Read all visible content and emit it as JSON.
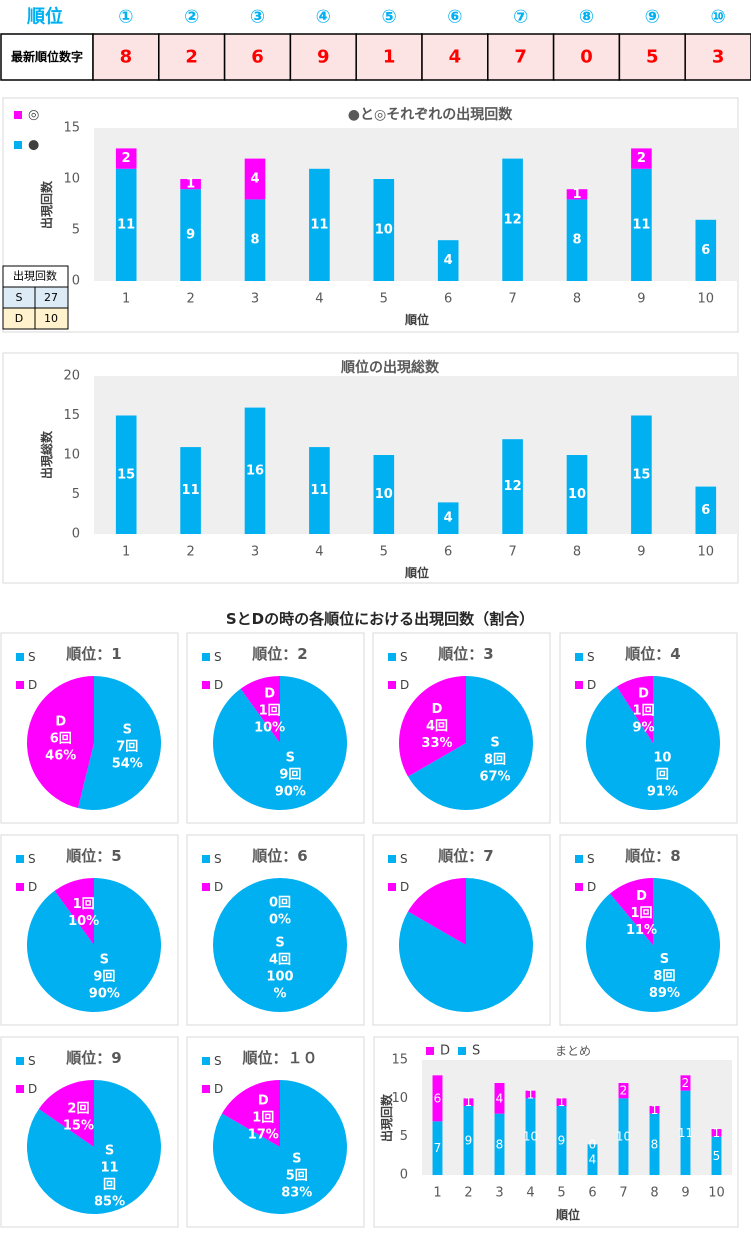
{
  "header_table": {
    "label": "順位",
    "columns": [
      "①",
      "②",
      "③",
      "④",
      "⑤",
      "⑥",
      "⑦",
      "⑧",
      "⑨",
      "⑩"
    ],
    "row_label": "最新順位数字",
    "row_values": [
      8,
      2,
      6,
      9,
      1,
      4,
      7,
      0,
      5,
      3
    ]
  },
  "side_table": {
    "header": "出現回数",
    "rows": [
      [
        "S",
        27
      ],
      [
        "D",
        10
      ]
    ]
  },
  "section_title": "SとDの時の各順位における出現回数（割合）",
  "chart_data": [
    {
      "type": "bar",
      "stacked": true,
      "title": "●と◎それぞれの出現回数",
      "x_label": "順位",
      "y_label": "出現回数",
      "categories": [
        "1",
        "2",
        "3",
        "4",
        "5",
        "6",
        "7",
        "8",
        "9",
        "10"
      ],
      "series": [
        {
          "name": "●",
          "color": "#00b0f0",
          "values": [
            11,
            9,
            8,
            11,
            10,
            4,
            12,
            8,
            11,
            6
          ]
        },
        {
          "name": "◎",
          "color": "#ff00ff",
          "values": [
            2,
            1,
            4,
            null,
            null,
            null,
            null,
            1,
            2,
            null
          ]
        }
      ],
      "ylim": [
        0,
        15
      ],
      "yticks": [
        0,
        5,
        10,
        15
      ],
      "grid": false,
      "legend": "top-left"
    },
    {
      "type": "bar",
      "title": "順位の出現総数",
      "x_label": "順位",
      "y_label": "出現総数",
      "categories": [
        "1",
        "2",
        "3",
        "4",
        "5",
        "6",
        "7",
        "8",
        "9",
        "10"
      ],
      "values": [
        15,
        11,
        16,
        11,
        10,
        4,
        12,
        10,
        15,
        6
      ],
      "color": "#00b0f0",
      "ylim": [
        0,
        20
      ],
      "yticks": [
        0,
        5,
        10,
        15,
        20
      ],
      "grid": false
    },
    {
      "type": "pie",
      "title": "順位：1",
      "categories": [
        "S",
        "D"
      ],
      "colors": [
        "#00b0f0",
        "#ff00ff"
      ],
      "values": [
        7,
        6
      ],
      "value_labels": [
        [
          "S",
          "7回",
          "54%"
        ],
        [
          "D",
          "6回",
          "46%"
        ]
      ]
    },
    {
      "type": "pie",
      "title": "順位：2",
      "categories": [
        "S",
        "D"
      ],
      "colors": [
        "#00b0f0",
        "#ff00ff"
      ],
      "values": [
        9,
        1
      ],
      "value_labels": [
        [
          "S",
          "9回",
          "90%"
        ],
        [
          "D",
          "1回",
          "10%"
        ]
      ]
    },
    {
      "type": "pie",
      "title": "順位：3",
      "categories": [
        "S",
        "D"
      ],
      "colors": [
        "#00b0f0",
        "#ff00ff"
      ],
      "values": [
        8,
        4
      ],
      "value_labels": [
        [
          "S",
          "8回",
          "67%"
        ],
        [
          "D",
          "4回",
          "33%"
        ]
      ]
    },
    {
      "type": "pie",
      "title": "順位：4",
      "categories": [
        "S",
        "D"
      ],
      "colors": [
        "#00b0f0",
        "#ff00ff"
      ],
      "values": [
        10,
        1
      ],
      "value_labels": [
        [
          "10",
          "回",
          "91%"
        ],
        [
          "D",
          "1回",
          "9%"
        ]
      ]
    },
    {
      "type": "pie",
      "title": "順位：5",
      "categories": [
        "S",
        "D"
      ],
      "colors": [
        "#00b0f0",
        "#ff00ff"
      ],
      "values": [
        9,
        1
      ],
      "value_labels": [
        [
          "S",
          "9回",
          "90%"
        ],
        [
          "1回",
          "10%"
        ]
      ]
    },
    {
      "type": "pie",
      "title": "順位：6",
      "categories": [
        "S",
        "D"
      ],
      "colors": [
        "#00b0f0",
        "#ff00ff"
      ],
      "values": [
        4,
        0
      ],
      "value_labels": [
        [
          "S",
          "4回",
          "100",
          "%"
        ],
        [
          "0回",
          "0%"
        ]
      ]
    },
    {
      "type": "pie",
      "title": "順位：7",
      "categories": [
        "S",
        "D"
      ],
      "colors": [
        "#00b0f0",
        "#ff00ff"
      ],
      "values": [
        10,
        2
      ]
    },
    {
      "type": "pie",
      "title": "順位：8",
      "categories": [
        "S",
        "D"
      ],
      "colors": [
        "#00b0f0",
        "#ff00ff"
      ],
      "values": [
        8,
        1
      ],
      "value_labels": [
        [
          "S",
          "8回",
          "89%"
        ],
        [
          "D",
          "1回",
          "11%"
        ]
      ]
    },
    {
      "type": "pie",
      "title": "順位：9",
      "categories": [
        "S",
        "D"
      ],
      "colors": [
        "#00b0f0",
        "#ff00ff"
      ],
      "values": [
        11,
        2
      ],
      "value_labels": [
        [
          "S",
          "11",
          "回",
          "85%"
        ],
        [
          "2回",
          "15%"
        ]
      ]
    },
    {
      "type": "pie",
      "title": "順位：１０",
      "categories": [
        "S",
        "D"
      ],
      "colors": [
        "#00b0f0",
        "#ff00ff"
      ],
      "values": [
        5,
        1
      ],
      "value_labels": [
        [
          "S",
          "5回",
          "83%"
        ],
        [
          "D",
          "1回",
          "17%"
        ]
      ]
    },
    {
      "type": "bar",
      "stacked": true,
      "title": "まとめ",
      "x_label": "順位",
      "y_label": "出現回数",
      "categories": [
        "1",
        "2",
        "3",
        "4",
        "5",
        "6",
        "7",
        "8",
        "9",
        "10"
      ],
      "series": [
        {
          "name": "S",
          "color": "#00b0f0",
          "values": [
            7,
            9,
            8,
            10,
            9,
            4,
            10,
            8,
            11,
            5
          ]
        },
        {
          "name": "D",
          "color": "#ff00ff",
          "values": [
            6,
            1,
            4,
            1,
            1,
            0,
            2,
            1,
            2,
            1
          ]
        }
      ],
      "ylim": [
        0,
        15
      ],
      "yticks": [
        0,
        5,
        10,
        15
      ],
      "grid": false,
      "legend": "top-left"
    }
  ]
}
